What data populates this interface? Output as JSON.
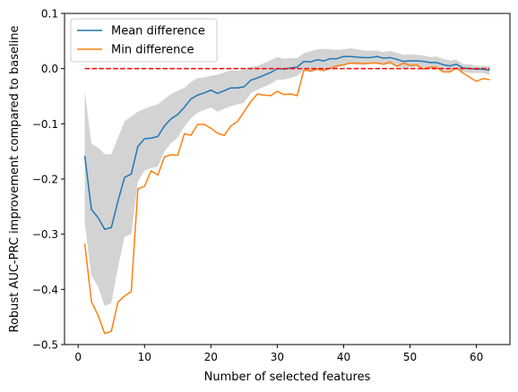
{
  "chart_data": {
    "type": "line",
    "title": "",
    "xlabel": "Number of selected features",
    "ylabel": "Robust AUC-PRC improvement compared to baseline",
    "xlim": [
      -2.05,
      65.05
    ],
    "ylim": [
      -0.5,
      0.1
    ],
    "xticks": [
      "0",
      "10",
      "20",
      "30",
      "40",
      "50",
      "60"
    ],
    "yticks": [
      "−0.5",
      "−0.4",
      "−0.3",
      "−0.2",
      "−0.1",
      "0.0",
      "0.1"
    ],
    "grid": false,
    "legend_position": "upper-left",
    "x": [
      1,
      2,
      3,
      4,
      5,
      6,
      7,
      8,
      9,
      10,
      11,
      12,
      13,
      14,
      15,
      16,
      17,
      18,
      19,
      20,
      21,
      22,
      23,
      24,
      25,
      26,
      27,
      28,
      29,
      30,
      31,
      32,
      33,
      34,
      35,
      36,
      37,
      38,
      39,
      40,
      41,
      42,
      43,
      44,
      45,
      46,
      47,
      48,
      49,
      50,
      51,
      52,
      53,
      54,
      55,
      56,
      57,
      58,
      59,
      60,
      61,
      62
    ],
    "series": [
      {
        "name": "Mean difference",
        "color": "#1f77b4",
        "values": [
          -0.158,
          -0.255,
          -0.27,
          -0.291,
          -0.288,
          -0.24,
          -0.197,
          -0.191,
          -0.141,
          -0.127,
          -0.126,
          -0.123,
          -0.104,
          -0.091,
          -0.083,
          -0.07,
          -0.055,
          -0.048,
          -0.044,
          -0.039,
          -0.045,
          -0.04,
          -0.035,
          -0.035,
          -0.033,
          -0.021,
          -0.017,
          -0.012,
          -0.007,
          0.0,
          -0.001,
          0.001,
          0.003,
          0.013,
          0.012,
          0.016,
          0.014,
          0.018,
          0.018,
          0.022,
          0.022,
          0.021,
          0.02,
          0.02,
          0.022,
          0.019,
          0.02,
          0.017,
          0.013,
          0.014,
          0.014,
          0.013,
          0.011,
          0.011,
          0.007,
          0.005,
          0.008,
          0.001,
          0.0,
          -0.001,
          -0.001,
          -0.003
        ]
      },
      {
        "name": "Min difference",
        "color": "#ff7f0e",
        "values": [
          -0.317,
          -0.422,
          -0.447,
          -0.48,
          -0.476,
          -0.423,
          -0.412,
          -0.404,
          -0.218,
          -0.213,
          -0.185,
          -0.193,
          -0.16,
          -0.156,
          -0.157,
          -0.118,
          -0.121,
          -0.101,
          -0.101,
          -0.108,
          -0.117,
          -0.121,
          -0.104,
          -0.096,
          -0.078,
          -0.06,
          -0.046,
          -0.048,
          -0.049,
          -0.041,
          -0.047,
          -0.046,
          -0.049,
          -0.003,
          -0.004,
          -0.001,
          -0.003,
          0.001,
          0.005,
          0.007,
          0.01,
          0.01,
          0.009,
          0.01,
          0.01,
          0.008,
          0.012,
          0.004,
          0.01,
          0.006,
          0.007,
          -0.001,
          0.003,
          0.002,
          -0.006,
          -0.006,
          0.001,
          -0.008,
          -0.016,
          -0.023,
          -0.018,
          -0.02
        ]
      }
    ],
    "band": {
      "color": "#d3d3d3",
      "upper": [
        -0.04,
        -0.136,
        -0.143,
        -0.155,
        -0.155,
        -0.125,
        -0.095,
        -0.087,
        -0.078,
        -0.073,
        -0.068,
        -0.065,
        -0.055,
        -0.046,
        -0.04,
        -0.035,
        -0.024,
        -0.017,
        -0.016,
        -0.013,
        -0.011,
        -0.007,
        -0.003,
        -0.004,
        -0.002,
        0.003,
        0.005,
        0.01,
        0.015,
        0.021,
        0.018,
        0.019,
        0.019,
        0.028,
        0.031,
        0.035,
        0.036,
        0.035,
        0.034,
        0.035,
        0.037,
        0.035,
        0.033,
        0.032,
        0.033,
        0.03,
        0.032,
        0.029,
        0.025,
        0.026,
        0.025,
        0.024,
        0.021,
        0.022,
        0.018,
        0.015,
        0.016,
        0.008,
        0.008,
        0.005,
        0.005,
        0.004
      ],
      "lower": [
        -0.28,
        -0.375,
        -0.395,
        -0.43,
        -0.425,
        -0.36,
        -0.305,
        -0.3,
        -0.205,
        -0.185,
        -0.18,
        -0.178,
        -0.15,
        -0.135,
        -0.125,
        -0.105,
        -0.09,
        -0.08,
        -0.075,
        -0.07,
        -0.078,
        -0.073,
        -0.068,
        -0.065,
        -0.062,
        -0.045,
        -0.038,
        -0.033,
        -0.028,
        -0.02,
        -0.02,
        -0.017,
        -0.013,
        -0.002,
        -0.007,
        -0.003,
        -0.006,
        0.0,
        0.001,
        0.008,
        0.008,
        0.007,
        0.007,
        0.008,
        0.01,
        0.007,
        0.008,
        0.005,
        0.001,
        0.002,
        0.003,
        0.001,
        0.0,
        0.0,
        -0.004,
        -0.005,
        0.0,
        -0.006,
        -0.008,
        -0.008,
        -0.008,
        -0.011
      ]
    },
    "baseline": {
      "y": 0.0,
      "x_start": 1,
      "x_end": 62,
      "color": "#ff0000",
      "style": "dashed"
    }
  }
}
